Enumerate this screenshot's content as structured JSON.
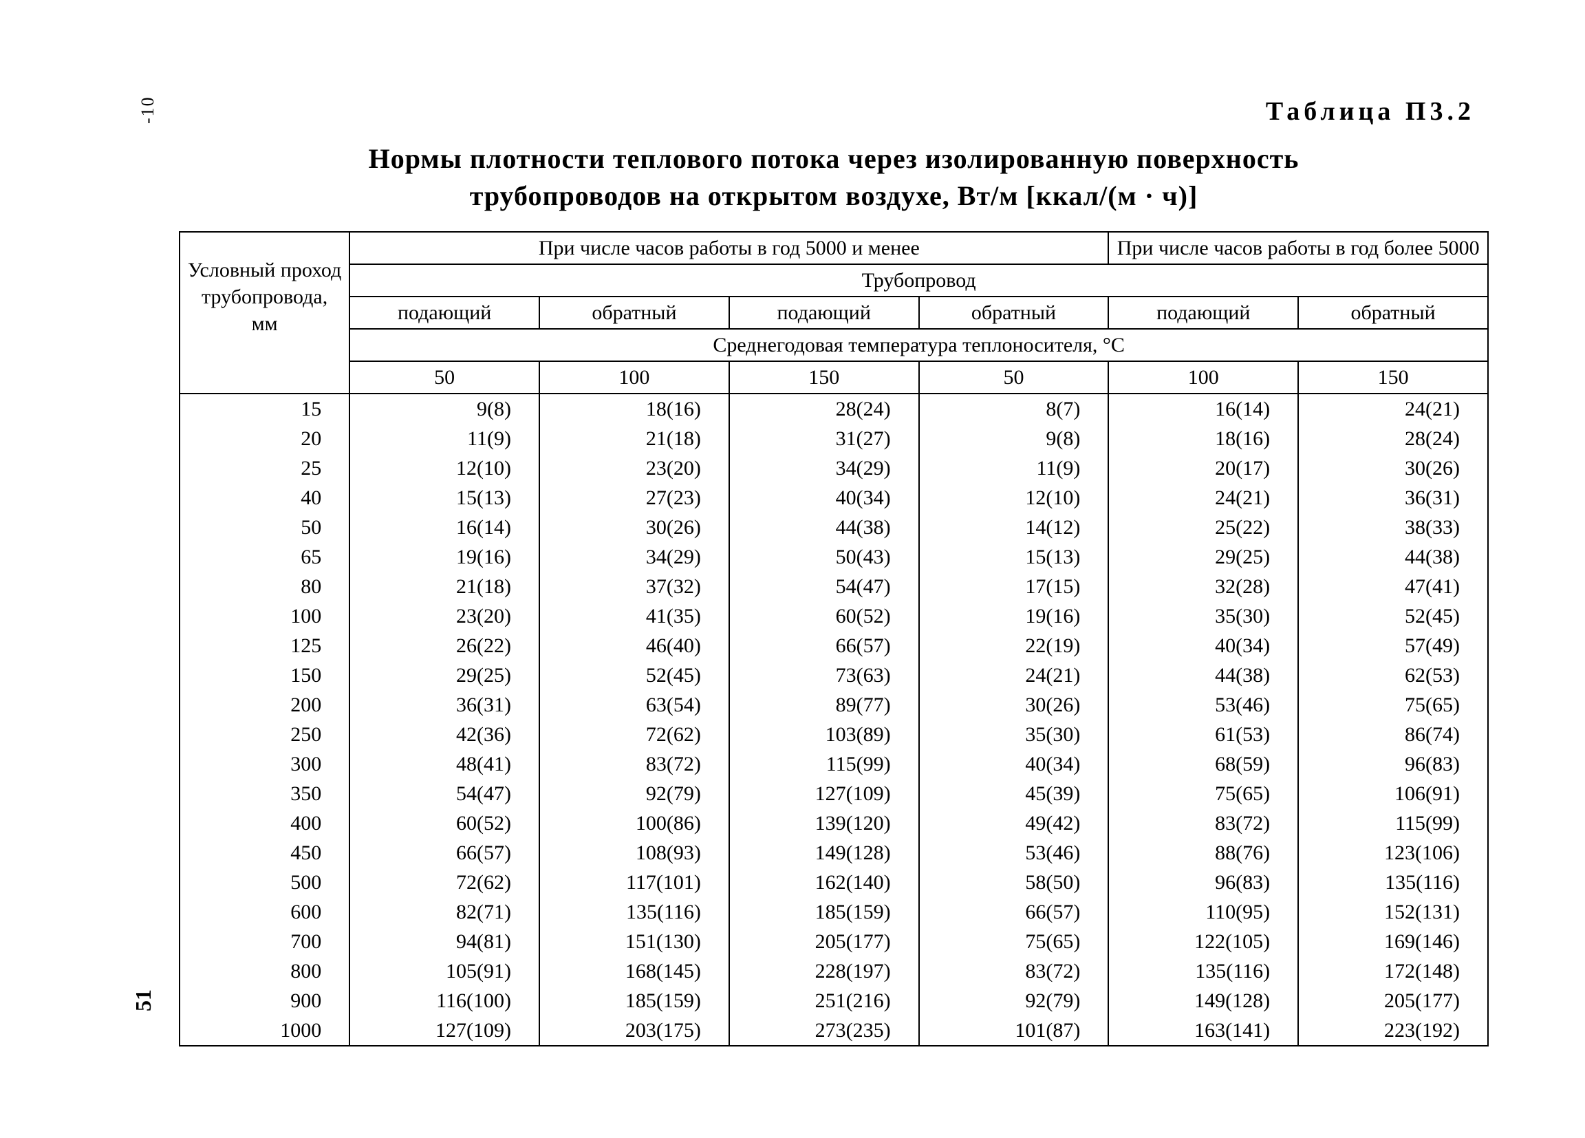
{
  "page": {
    "side_top": "-10",
    "side_bottom": "51",
    "table_label": "Таблица П3.2",
    "title_line1": "Нормы плотности теплового потока через изолированную поверхность",
    "title_line2": "трубопроводов на открытом воздухе, Вт/м [ккал/(м · ч)]"
  },
  "header": {
    "rowhead_l1": "Условный проход",
    "rowhead_l2": "трубопровода, мм",
    "group_left": "При числе часов работы в год 5000 и менее",
    "group_right": "При числе часов работы в год более 5000",
    "pipe": "Трубопровод",
    "supply": "подающий",
    "return": "обратный",
    "avg_temp": "Среднегодовая температура теплоносителя, °C",
    "temps": [
      "50",
      "100",
      "150",
      "50",
      "100",
      "150"
    ]
  },
  "rows": [
    {
      "d": "15",
      "v": [
        "9(8)",
        "18(16)",
        "28(24)",
        "8(7)",
        "16(14)",
        "24(21)"
      ]
    },
    {
      "d": "20",
      "v": [
        "11(9)",
        "21(18)",
        "31(27)",
        "9(8)",
        "18(16)",
        "28(24)"
      ]
    },
    {
      "d": "25",
      "v": [
        "12(10)",
        "23(20)",
        "34(29)",
        "11(9)",
        "20(17)",
        "30(26)"
      ]
    },
    {
      "d": "40",
      "v": [
        "15(13)",
        "27(23)",
        "40(34)",
        "12(10)",
        "24(21)",
        "36(31)"
      ]
    },
    {
      "d": "50",
      "v": [
        "16(14)",
        "30(26)",
        "44(38)",
        "14(12)",
        "25(22)",
        "38(33)"
      ]
    },
    {
      "d": "65",
      "v": [
        "19(16)",
        "34(29)",
        "50(43)",
        "15(13)",
        "29(25)",
        "44(38)"
      ]
    },
    {
      "d": "80",
      "v": [
        "21(18)",
        "37(32)",
        "54(47)",
        "17(15)",
        "32(28)",
        "47(41)"
      ]
    },
    {
      "d": "100",
      "v": [
        "23(20)",
        "41(35)",
        "60(52)",
        "19(16)",
        "35(30)",
        "52(45)"
      ]
    },
    {
      "d": "125",
      "v": [
        "26(22)",
        "46(40)",
        "66(57)",
        "22(19)",
        "40(34)",
        "57(49)"
      ]
    },
    {
      "d": "150",
      "v": [
        "29(25)",
        "52(45)",
        "73(63)",
        "24(21)",
        "44(38)",
        "62(53)"
      ]
    },
    {
      "d": "200",
      "v": [
        "36(31)",
        "63(54)",
        "89(77)",
        "30(26)",
        "53(46)",
        "75(65)"
      ]
    },
    {
      "d": "250",
      "v": [
        "42(36)",
        "72(62)",
        "103(89)",
        "35(30)",
        "61(53)",
        "86(74)"
      ]
    },
    {
      "d": "300",
      "v": [
        "48(41)",
        "83(72)",
        "115(99)",
        "40(34)",
        "68(59)",
        "96(83)"
      ]
    },
    {
      "d": "350",
      "v": [
        "54(47)",
        "92(79)",
        "127(109)",
        "45(39)",
        "75(65)",
        "106(91)"
      ]
    },
    {
      "d": "400",
      "v": [
        "60(52)",
        "100(86)",
        "139(120)",
        "49(42)",
        "83(72)",
        "115(99)"
      ]
    },
    {
      "d": "450",
      "v": [
        "66(57)",
        "108(93)",
        "149(128)",
        "53(46)",
        "88(76)",
        "123(106)"
      ]
    },
    {
      "d": "500",
      "v": [
        "72(62)",
        "117(101)",
        "162(140)",
        "58(50)",
        "96(83)",
        "135(116)"
      ]
    },
    {
      "d": "600",
      "v": [
        "82(71)",
        "135(116)",
        "185(159)",
        "66(57)",
        "110(95)",
        "152(131)"
      ]
    },
    {
      "d": "700",
      "v": [
        "94(81)",
        "151(130)",
        "205(177)",
        "75(65)",
        "122(105)",
        "169(146)"
      ]
    },
    {
      "d": "800",
      "v": [
        "105(91)",
        "168(145)",
        "228(197)",
        "83(72)",
        "135(116)",
        "172(148)"
      ]
    },
    {
      "d": "900",
      "v": [
        "116(100)",
        "185(159)",
        "251(216)",
        "92(79)",
        "149(128)",
        "205(177)"
      ]
    },
    {
      "d": "1000",
      "v": [
        "127(109)",
        "203(175)",
        "273(235)",
        "101(87)",
        "163(141)",
        "223(192)"
      ]
    }
  ],
  "style": {
    "font_family": "Times New Roman",
    "text_color": "#000000",
    "background": "#ffffff",
    "border_color": "#000000",
    "title_fontsize_pt": 30,
    "table_fontsize_pt": 22,
    "col_widths_pct": [
      13,
      14.5,
      14.5,
      14.5,
      14.5,
      14.5,
      14.5
    ]
  }
}
